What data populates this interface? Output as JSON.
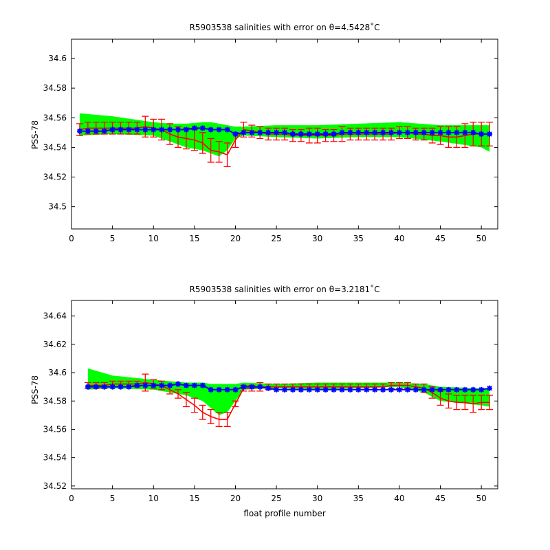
{
  "chart_data": [
    {
      "type": "line",
      "title": "R5903538 salinities with error on θ=4.5428˚C",
      "xlabel": "",
      "ylabel": "PSS-78",
      "xlim": [
        0,
        52
      ],
      "ylim": [
        34.485,
        34.613
      ],
      "xticks": [
        0,
        5,
        10,
        15,
        20,
        25,
        30,
        35,
        40,
        45,
        50
      ],
      "yticks": [
        34.5,
        34.52,
        34.54,
        34.56,
        34.58,
        34.6
      ],
      "ytick_labels": [
        "34.5",
        "34.52",
        "34.54",
        "34.56",
        "34.58",
        "34.6"
      ],
      "series": [
        {
          "role": "band",
          "color": "#00ff00",
          "x": [
            1,
            5,
            10,
            12,
            14,
            16,
            17,
            18,
            19,
            20,
            21,
            25,
            30,
            35,
            40,
            45,
            50,
            51
          ],
          "upper": [
            34.563,
            34.561,
            34.557,
            34.556,
            34.556,
            34.557,
            34.557,
            34.556,
            34.555,
            34.554,
            34.554,
            34.555,
            34.555,
            34.556,
            34.557,
            34.555,
            34.555,
            34.555
          ],
          "lower": [
            34.548,
            34.549,
            34.548,
            34.544,
            34.54,
            34.538,
            34.536,
            34.534,
            34.538,
            34.546,
            34.548,
            34.547,
            34.546,
            34.547,
            34.547,
            34.544,
            34.54,
            34.537
          ]
        },
        {
          "role": "errorbar",
          "color": "#ff0000",
          "x": [
            1,
            2,
            3,
            4,
            5,
            6,
            7,
            8,
            9,
            10,
            11,
            12,
            13,
            14,
            15,
            16,
            17,
            18,
            19,
            20,
            21,
            22,
            23,
            24,
            25,
            26,
            27,
            28,
            29,
            30,
            31,
            32,
            33,
            34,
            35,
            36,
            37,
            38,
            39,
            40,
            41,
            42,
            43,
            44,
            45,
            46,
            47,
            48,
            49,
            50,
            51
          ],
          "y": [
            34.552,
            34.553,
            34.553,
            34.553,
            34.553,
            34.553,
            34.553,
            34.553,
            34.554,
            34.553,
            34.552,
            34.549,
            34.547,
            34.546,
            34.545,
            34.543,
            34.538,
            34.537,
            34.535,
            34.545,
            34.552,
            34.551,
            34.55,
            34.549,
            34.549,
            34.549,
            34.548,
            34.548,
            34.548,
            34.548,
            34.548,
            34.548,
            34.549,
            34.549,
            34.549,
            34.549,
            34.549,
            34.549,
            34.549,
            34.55,
            34.55,
            34.549,
            34.549,
            34.548,
            34.548,
            34.547,
            34.547,
            34.548,
            34.549,
            34.549,
            34.549
          ],
          "err": [
            0.004,
            0.004,
            0.004,
            0.004,
            0.004,
            0.004,
            0.004,
            0.004,
            0.007,
            0.006,
            0.007,
            0.007,
            0.007,
            0.007,
            0.007,
            0.007,
            0.008,
            0.007,
            0.008,
            0.005,
            0.005,
            0.004,
            0.004,
            0.004,
            0.004,
            0.004,
            0.004,
            0.004,
            0.005,
            0.005,
            0.004,
            0.004,
            0.005,
            0.004,
            0.004,
            0.004,
            0.004,
            0.004,
            0.004,
            0.004,
            0.004,
            0.004,
            0.004,
            0.005,
            0.006,
            0.007,
            0.007,
            0.008,
            0.008,
            0.008,
            0.008
          ]
        },
        {
          "role": "markers",
          "color": "#0000ff",
          "x": [
            1,
            2,
            3,
            4,
            5,
            6,
            7,
            8,
            9,
            10,
            11,
            12,
            13,
            14,
            15,
            16,
            17,
            18,
            19,
            20,
            21,
            22,
            23,
            24,
            25,
            26,
            27,
            28,
            29,
            30,
            31,
            32,
            33,
            34,
            35,
            36,
            37,
            38,
            39,
            40,
            41,
            42,
            43,
            44,
            45,
            46,
            47,
            48,
            49,
            50,
            51
          ],
          "y": [
            34.551,
            34.551,
            34.551,
            34.551,
            34.552,
            34.552,
            34.552,
            34.552,
            34.552,
            34.552,
            34.552,
            34.552,
            34.552,
            34.552,
            34.553,
            34.553,
            34.552,
            34.552,
            34.552,
            34.549,
            34.55,
            34.55,
            34.55,
            34.55,
            34.55,
            34.55,
            34.549,
            34.549,
            34.549,
            34.549,
            34.549,
            34.549,
            34.55,
            34.55,
            34.55,
            34.55,
            34.55,
            34.55,
            34.55,
            34.55,
            34.55,
            34.55,
            34.55,
            34.55,
            34.55,
            34.55,
            34.55,
            34.55,
            34.55,
            34.549,
            34.549
          ]
        }
      ]
    },
    {
      "type": "line",
      "title": "R5903538 salinities with error on θ=3.2181˚C",
      "xlabel": "float profile number",
      "ylabel": "PSS-78",
      "xlim": [
        0,
        52
      ],
      "ylim": [
        34.518,
        34.651
      ],
      "xticks": [
        0,
        5,
        10,
        15,
        20,
        25,
        30,
        35,
        40,
        45,
        50
      ],
      "yticks": [
        34.52,
        34.54,
        34.56,
        34.58,
        34.6,
        34.62,
        34.64
      ],
      "ytick_labels": [
        "34.52",
        "34.54",
        "34.56",
        "34.58",
        "34.6",
        "34.62",
        "34.64"
      ],
      "series": [
        {
          "role": "band",
          "color": "#00ff00",
          "x": [
            2,
            5,
            10,
            14,
            16,
            17,
            18,
            19,
            20,
            21,
            25,
            30,
            35,
            40,
            43,
            45,
            50,
            51
          ],
          "upper": [
            34.603,
            34.598,
            34.595,
            34.593,
            34.593,
            34.592,
            34.592,
            34.592,
            34.592,
            34.593,
            34.592,
            34.593,
            34.593,
            34.593,
            34.592,
            34.59,
            34.589,
            34.589
          ],
          "lower": [
            34.588,
            34.589,
            34.588,
            34.584,
            34.58,
            34.575,
            34.57,
            34.572,
            34.58,
            34.588,
            34.589,
            34.588,
            34.589,
            34.59,
            34.586,
            34.58,
            34.577,
            34.576
          ]
        },
        {
          "role": "errorbar",
          "color": "#ff0000",
          "x": [
            2,
            3,
            4,
            5,
            6,
            7,
            8,
            9,
            10,
            11,
            12,
            13,
            14,
            15,
            16,
            17,
            18,
            19,
            20,
            21,
            22,
            23,
            24,
            25,
            26,
            27,
            28,
            29,
            30,
            31,
            32,
            33,
            34,
            35,
            36,
            37,
            38,
            39,
            40,
            41,
            42,
            43,
            44,
            45,
            46,
            47,
            48,
            49,
            50,
            51
          ],
          "y": [
            34.591,
            34.591,
            34.591,
            34.592,
            34.592,
            34.592,
            34.592,
            34.593,
            34.592,
            34.591,
            34.588,
            34.585,
            34.581,
            34.577,
            34.572,
            34.569,
            34.567,
            34.567,
            34.578,
            34.589,
            34.589,
            34.59,
            34.59,
            34.59,
            34.59,
            34.59,
            34.59,
            34.59,
            34.59,
            34.59,
            34.59,
            34.59,
            34.59,
            34.59,
            34.59,
            34.59,
            34.59,
            34.591,
            34.591,
            34.591,
            34.59,
            34.589,
            34.586,
            34.582,
            34.58,
            34.579,
            34.579,
            34.578,
            34.579,
            34.579
          ],
          "err": [
            0.002,
            0.002,
            0.002,
            0.002,
            0.002,
            0.002,
            0.002,
            0.006,
            0.003,
            0.003,
            0.003,
            0.003,
            0.005,
            0.005,
            0.005,
            0.005,
            0.005,
            0.005,
            0.002,
            0.002,
            0.002,
            0.003,
            0.002,
            0.002,
            0.002,
            0.002,
            0.002,
            0.002,
            0.002,
            0.002,
            0.002,
            0.002,
            0.002,
            0.002,
            0.002,
            0.002,
            0.002,
            0.002,
            0.002,
            0.002,
            0.002,
            0.003,
            0.004,
            0.005,
            0.005,
            0.005,
            0.005,
            0.006,
            0.005,
            0.005
          ]
        },
        {
          "role": "markers",
          "color": "#0000ff",
          "x": [
            2,
            3,
            4,
            5,
            6,
            7,
            8,
            9,
            10,
            11,
            12,
            13,
            14,
            15,
            16,
            17,
            18,
            19,
            20,
            21,
            22,
            23,
            24,
            25,
            26,
            27,
            28,
            29,
            30,
            31,
            32,
            33,
            34,
            35,
            36,
            37,
            38,
            39,
            40,
            41,
            42,
            43,
            44,
            45,
            46,
            47,
            48,
            49,
            50,
            51
          ],
          "y": [
            34.59,
            34.59,
            34.59,
            34.59,
            34.59,
            34.59,
            34.591,
            34.591,
            34.591,
            34.591,
            34.591,
            34.592,
            34.591,
            34.591,
            34.591,
            34.588,
            34.588,
            34.588,
            34.588,
            34.59,
            34.59,
            34.59,
            34.589,
            34.588,
            34.588,
            34.588,
            34.588,
            34.588,
            34.588,
            34.588,
            34.588,
            34.588,
            34.588,
            34.588,
            34.588,
            34.588,
            34.588,
            34.588,
            34.588,
            34.588,
            34.588,
            34.588,
            34.588,
            34.588,
            34.588,
            34.588,
            34.588,
            34.588,
            34.588,
            34.589
          ]
        }
      ]
    }
  ]
}
